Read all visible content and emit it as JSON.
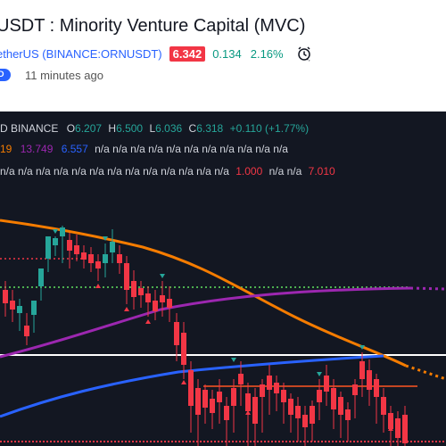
{
  "header": {
    "title": "USDT : Minority Venture Capital (MVC)",
    "symbol": "etherUS (BINANCE:ORNUSDT)",
    "price": "6.342",
    "change": "0.134",
    "change_pct": "2.16%",
    "timeline_badge": "D",
    "updated": "11 minutes ago",
    "icon": "alarm-clock-icon"
  },
  "legend": {
    "source": "D  BINANCE",
    "o_label": "O",
    "o": "6.207",
    "h_label": "H",
    "h": "6.500",
    "l_label": "L",
    "l": "6.036",
    "c_label": "C",
    "c": "6.318",
    "delta": "+0.110 (+1.77%)"
  },
  "indicators": {
    "row1_a": "19",
    "row1_b": "13.749",
    "row1_c": "6.557",
    "row1_rest": "n/a n/a n/a n/a n/a n/a n/a n/a n/a n/a n/a",
    "row2_rest": "n/a n/a n/a n/a n/a n/a n/a n/a n/a n/a n/a n/a n/a",
    "row2_v1": "1.000",
    "row2_mid": "n/a n/a",
    "row2_v2": "7.010"
  },
  "colors": {
    "up": "#26a69a",
    "down": "#f23645",
    "background": "#131722",
    "orange_ma": "#f57c00",
    "purple_ma": "#9c27b0",
    "blue_ma": "#2962ff"
  }
}
